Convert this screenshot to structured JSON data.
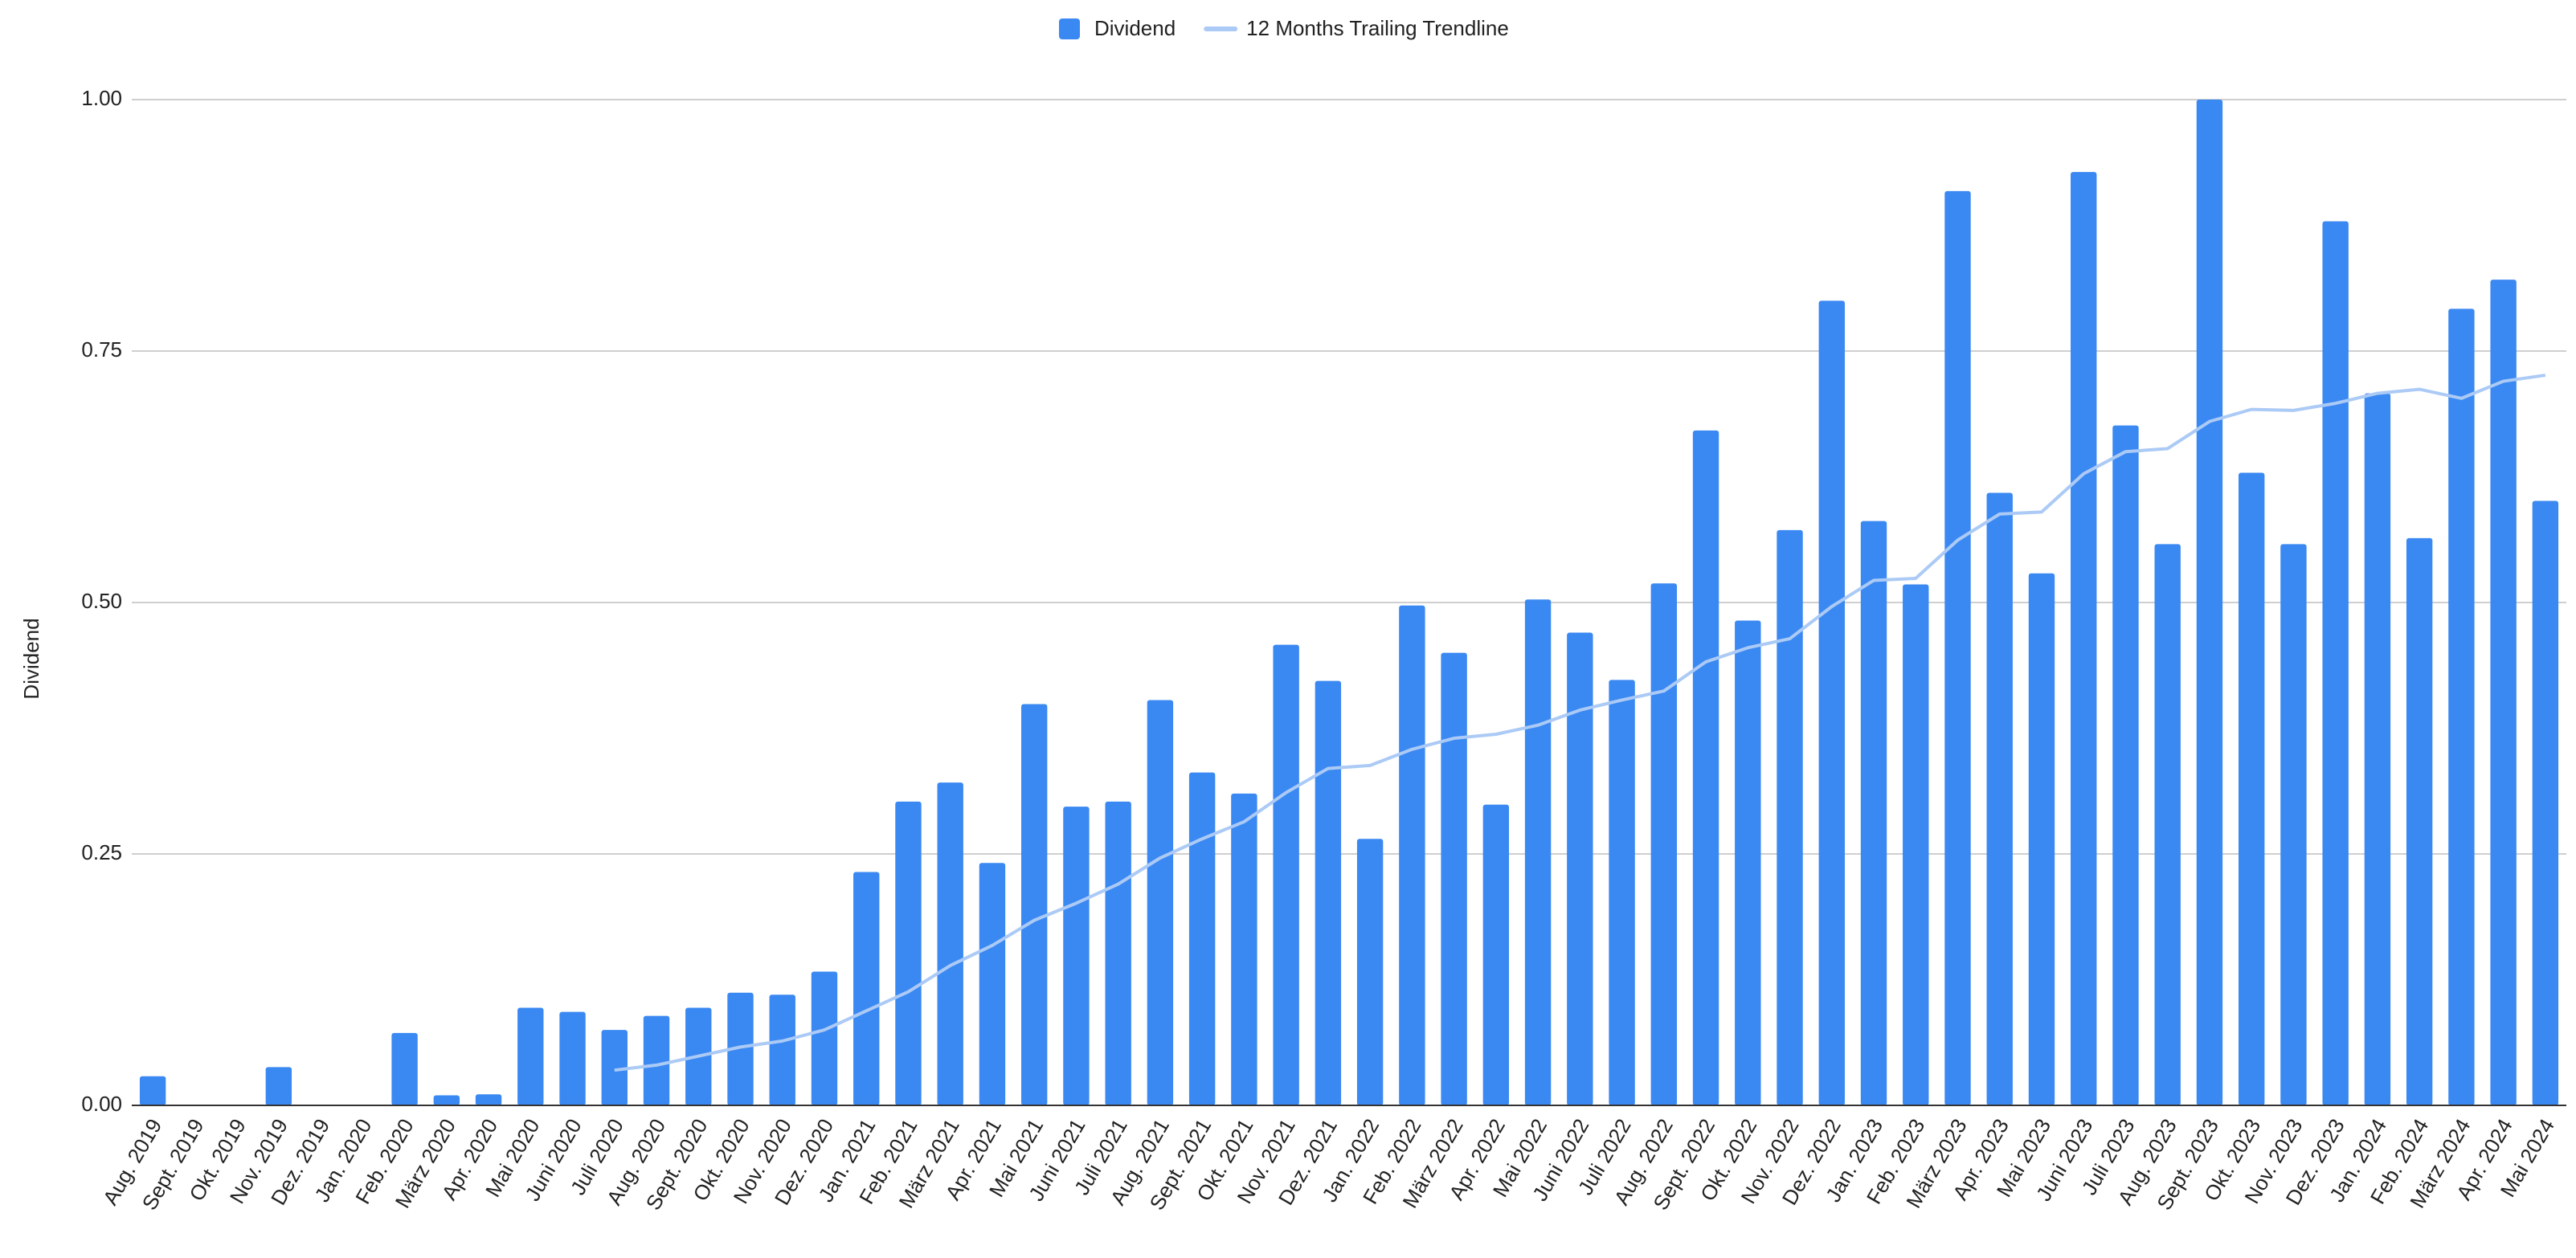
{
  "chart_data": {
    "type": "bar",
    "y_label": "Dividend",
    "categories": [
      "Aug. 2019",
      "Sept. 2019",
      "Okt. 2019",
      "Nov. 2019",
      "Dez. 2019",
      "Jan. 2020",
      "Feb. 2020",
      "März 2020",
      "Apr. 2020",
      "Mai 2020",
      "Juni 2020",
      "Juli 2020",
      "Aug. 2020",
      "Sept. 2020",
      "Okt. 2020",
      "Nov. 2020",
      "Dez. 2020",
      "Jan. 2021",
      "Feb. 2021",
      "März 2021",
      "Apr. 2021",
      "Mai 2021",
      "Juni 2021",
      "Juli 2021",
      "Aug. 2021",
      "Sept. 2021",
      "Okt. 2021",
      "Nov. 2021",
      "Dez. 2021",
      "Jan. 2022",
      "Feb. 2022",
      "März 2022",
      "Apr. 2022",
      "Mai 2022",
      "Juni 2022",
      "Juli 2022",
      "Aug. 2022",
      "Sept. 2022",
      "Okt. 2022",
      "Nov. 2022",
      "Dez. 2022",
      "Jan. 2023",
      "Feb. 2023",
      "März 2023",
      "Apr. 2023",
      "Mai 2023",
      "Juni 2023",
      "Juli 2023",
      "Aug. 2023",
      "Sept. 2023",
      "Okt. 2023",
      "Nov. 2023",
      "Dez. 2023",
      "Jan. 2024",
      "Feb. 2024",
      "März 2024",
      "Apr. 2024",
      "Mai 2024"
    ],
    "series": [
      {
        "name": "Dividend",
        "type": "bar",
        "color": "#3a88f2",
        "values": [
          0.029,
          0,
          0,
          0.038,
          0,
          0,
          0.072,
          0.01,
          0.011,
          0.097,
          0.093,
          0.075,
          0.089,
          0.097,
          0.112,
          0.11,
          0.133,
          0.232,
          0.302,
          0.321,
          0.241,
          0.399,
          0.297,
          0.302,
          0.403,
          0.331,
          0.31,
          0.458,
          0.422,
          0.265,
          0.497,
          0.45,
          0.299,
          0.503,
          0.47,
          0.423,
          0.519,
          0.671,
          0.482,
          0.572,
          0.8,
          0.581,
          0.518,
          0.909,
          0.609,
          0.529,
          0.928,
          0.676,
          0.558,
          1.0,
          0.629,
          0.558,
          0.879,
          0.708,
          0.564,
          0.792,
          0.821,
          0.601
        ]
      },
      {
        "name": "12 Months Trailing Trendline",
        "type": "line",
        "color": "#abcaf5",
        "values": [
          null,
          null,
          null,
          null,
          null,
          null,
          null,
          null,
          null,
          null,
          null,
          0.035,
          0.04,
          0.049,
          0.058,
          0.064,
          0.075,
          0.094,
          0.113,
          0.139,
          0.159,
          0.184,
          0.201,
          0.22,
          0.246,
          0.265,
          0.282,
          0.311,
          0.335,
          0.338,
          0.354,
          0.365,
          0.369,
          0.378,
          0.393,
          0.403,
          0.412,
          0.441,
          0.455,
          0.464,
          0.496,
          0.522,
          0.524,
          0.562,
          0.588,
          0.59,
          0.628,
          0.65,
          0.653,
          0.68,
          0.692,
          0.691,
          0.698,
          0.708,
          0.712,
          0.703,
          0.72,
          0.726
        ]
      }
    ],
    "ylim": [
      0,
      1
    ],
    "yticks": [
      {
        "value": 0,
        "label": "0.00"
      },
      {
        "value": 0.25,
        "label": "0.25"
      },
      {
        "value": 0.5,
        "label": "0.50"
      },
      {
        "value": 0.75,
        "label": "0.75"
      },
      {
        "value": 1,
        "label": "1.00"
      }
    ],
    "grid": true,
    "legend": "top"
  }
}
